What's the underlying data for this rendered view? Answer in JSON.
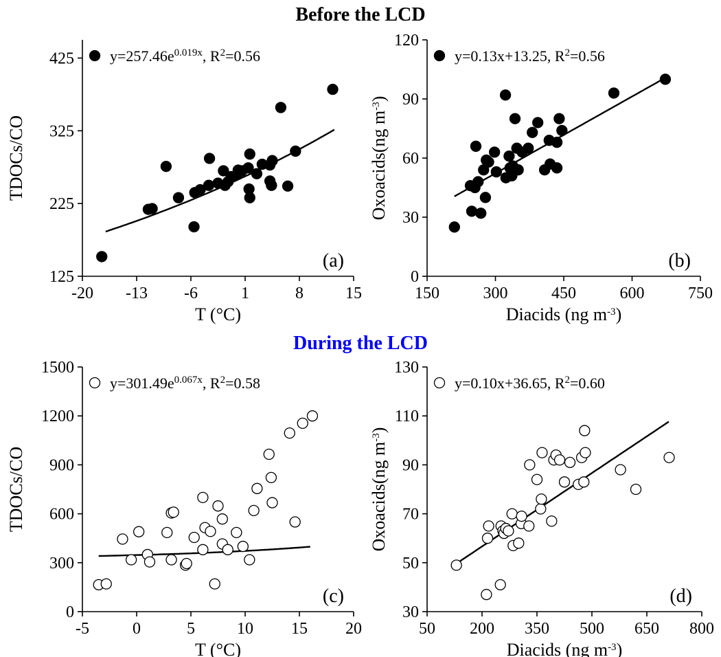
{
  "sections": {
    "before": "Before the LCD",
    "during": "During the LCD"
  },
  "chart_data": [
    {
      "panel_label": "(a)",
      "type": "scatter",
      "xlabel": "T (°C)",
      "ylabel": "TDOCs/CO",
      "xlim": [
        -20,
        15
      ],
      "ylim": [
        125,
        450
      ],
      "xticks": [
        -20,
        -13,
        -6,
        1,
        8,
        15
      ],
      "yticks": [
        125,
        225,
        325,
        425
      ],
      "marker": "filled",
      "legend_position": "top-left",
      "equation": {
        "prefix": "y=257.46e",
        "exponent": "0.019x",
        "r2_label": ", R",
        "r2_value": "=0.56"
      },
      "fit": {
        "model": "exp",
        "a": 257.46,
        "b": 0.019,
        "x_range": [
          -17,
          12.5
        ]
      },
      "points": [
        [
          -17.5,
          152
        ],
        [
          -11.5,
          217
        ],
        [
          -11.0,
          218
        ],
        [
          -9.2,
          276
        ],
        [
          -7.6,
          233
        ],
        [
          -5.6,
          193
        ],
        [
          -5.5,
          240
        ],
        [
          -4.8,
          244
        ],
        [
          -3.7,
          250
        ],
        [
          -3.6,
          287
        ],
        [
          -2.5,
          253
        ],
        [
          -1.8,
          270
        ],
        [
          -1.6,
          250
        ],
        [
          -1.2,
          255
        ],
        [
          -0.8,
          262
        ],
        [
          0.0,
          265
        ],
        [
          0.1,
          271
        ],
        [
          0.6,
          270
        ],
        [
          1.4,
          274
        ],
        [
          1.5,
          245
        ],
        [
          1.6,
          233
        ],
        [
          1.6,
          293
        ],
        [
          2.5,
          266
        ],
        [
          3.2,
          279
        ],
        [
          4.2,
          256
        ],
        [
          4.2,
          278
        ],
        [
          4.4,
          250
        ],
        [
          4.5,
          284
        ],
        [
          5.6,
          357
        ],
        [
          6.5,
          249
        ],
        [
          7.5,
          297
        ],
        [
          12.3,
          382
        ]
      ]
    },
    {
      "panel_label": "(b)",
      "type": "scatter",
      "xlabel": "Diacids (ng m-3)",
      "ylabel": "Oxoacids(ng m-3)",
      "xlim": [
        150,
        750
      ],
      "ylim": [
        0,
        120
      ],
      "xticks": [
        150,
        300,
        450,
        600,
        750
      ],
      "yticks": [
        0,
        30,
        60,
        90,
        120
      ],
      "marker": "filled",
      "legend_position": "top-left",
      "equation": {
        "text": "y=0.13x+13.25, R",
        "r2_value": "=0.56"
      },
      "fit": {
        "model": "linear",
        "slope": 0.13,
        "intercept": 13.25,
        "x_range": [
          210,
          670
        ]
      },
      "points": [
        [
          210,
          25
        ],
        [
          245,
          46
        ],
        [
          248,
          33
        ],
        [
          255,
          45
        ],
        [
          257,
          66
        ],
        [
          262,
          48
        ],
        [
          268,
          32
        ],
        [
          274,
          54
        ],
        [
          278,
          40
        ],
        [
          280,
          59
        ],
        [
          285,
          58
        ],
        [
          298,
          63
        ],
        [
          302,
          53
        ],
        [
          322,
          92
        ],
        [
          323,
          50
        ],
        [
          330,
          61
        ],
        [
          332,
          55
        ],
        [
          336,
          51
        ],
        [
          338,
          56
        ],
        [
          343,
          80
        ],
        [
          347,
          65
        ],
        [
          350,
          54
        ],
        [
          359,
          63
        ],
        [
          372,
          65
        ],
        [
          381,
          73
        ],
        [
          393,
          78
        ],
        [
          408,
          54
        ],
        [
          418,
          69
        ],
        [
          420,
          57
        ],
        [
          435,
          55
        ],
        [
          435,
          68
        ],
        [
          440,
          80
        ],
        [
          446,
          74
        ],
        [
          560,
          93
        ],
        [
          673,
          100
        ]
      ]
    },
    {
      "panel_label": "(c)",
      "type": "scatter",
      "xlabel": "T (°C)",
      "ylabel": "TDOCs/CO",
      "xlim": [
        -5,
        20
      ],
      "ylim": [
        0,
        1500
      ],
      "xticks": [
        -5,
        0,
        5,
        10,
        15,
        20
      ],
      "yticks": [
        0,
        300,
        600,
        900,
        1200,
        1500
      ],
      "marker": "open",
      "legend_position": "top-left",
      "equation": {
        "prefix": "y=301.49e",
        "exponent": "0.067x",
        "r2_label": ", R",
        "r2_value": "=0.58"
      },
      "fit": {
        "model": "exp-offset",
        "a": 301.49,
        "b": 0.067,
        "display_scale": 7.3,
        "display_offset": 320,
        "x_range": [
          -3.5,
          16
        ]
      },
      "points": [
        [
          -3.5,
          165
        ],
        [
          -2.8,
          170
        ],
        [
          -1.3,
          445
        ],
        [
          -0.5,
          318
        ],
        [
          0.2,
          490
        ],
        [
          1.0,
          350
        ],
        [
          1.2,
          305
        ],
        [
          2.8,
          485
        ],
        [
          3.2,
          605
        ],
        [
          3.2,
          318
        ],
        [
          3.4,
          610
        ],
        [
          4.5,
          285
        ],
        [
          4.6,
          295
        ],
        [
          5.3,
          455
        ],
        [
          6.1,
          380
        ],
        [
          6.1,
          700
        ],
        [
          6.3,
          515
        ],
        [
          6.8,
          492
        ],
        [
          7.2,
          170
        ],
        [
          7.5,
          648
        ],
        [
          7.9,
          415
        ],
        [
          7.9,
          568
        ],
        [
          8.4,
          380
        ],
        [
          9.2,
          485
        ],
        [
          9.8,
          400
        ],
        [
          10.4,
          318
        ],
        [
          10.8,
          620
        ],
        [
          11.1,
          755
        ],
        [
          12.2,
          965
        ],
        [
          12.4,
          822
        ],
        [
          12.5,
          668
        ],
        [
          14.1,
          1095
        ],
        [
          14.6,
          550
        ],
        [
          15.3,
          1155
        ],
        [
          16.2,
          1200
        ]
      ]
    },
    {
      "panel_label": "(d)",
      "type": "scatter",
      "xlabel": "Diacids (ng m-3)",
      "ylabel": "Oxoacids(ng m-3)",
      "xlim": [
        50,
        800
      ],
      "ylim": [
        30,
        130
      ],
      "xticks": [
        50,
        200,
        350,
        500,
        650,
        800
      ],
      "yticks": [
        30,
        50,
        70,
        90,
        110,
        130
      ],
      "marker": "open",
      "legend_position": "top-left",
      "equation": {
        "text": "y=0.10x+36.65, R",
        "r2_value": "=0.60"
      },
      "fit": {
        "model": "linear",
        "slope": 0.1,
        "intercept": 36.65,
        "x_range": [
          130,
          710
        ]
      },
      "points": [
        [
          130,
          49
        ],
        [
          212,
          37
        ],
        [
          215,
          60
        ],
        [
          218,
          65
        ],
        [
          250,
          41
        ],
        [
          252,
          65
        ],
        [
          257,
          63
        ],
        [
          260,
          62
        ],
        [
          265,
          64
        ],
        [
          272,
          63
        ],
        [
          282,
          70
        ],
        [
          285,
          57
        ],
        [
          300,
          58
        ],
        [
          307,
          66
        ],
        [
          308,
          69
        ],
        [
          328,
          65
        ],
        [
          330,
          90
        ],
        [
          350,
          84
        ],
        [
          360,
          72
        ],
        [
          362,
          76
        ],
        [
          364,
          95
        ],
        [
          390,
          67
        ],
        [
          396,
          92
        ],
        [
          402,
          94
        ],
        [
          412,
          92
        ],
        [
          425,
          83
        ],
        [
          440,
          91
        ],
        [
          463,
          82
        ],
        [
          472,
          93
        ],
        [
          478,
          83
        ],
        [
          480,
          104
        ],
        [
          482,
          95
        ],
        [
          578,
          88
        ],
        [
          620,
          80
        ],
        [
          711,
          93
        ]
      ]
    }
  ]
}
